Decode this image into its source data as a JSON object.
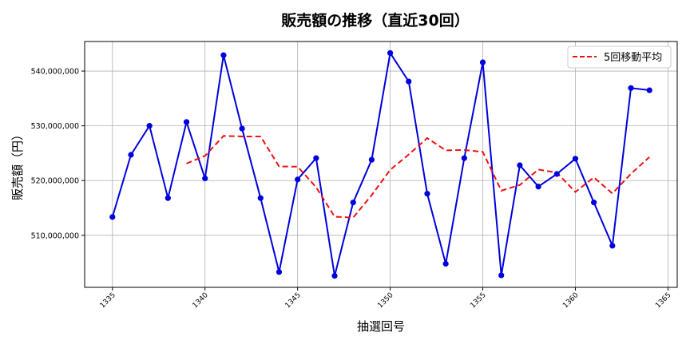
{
  "chart_data": {
    "type": "line",
    "title": "販売額の推移（直近30回）",
    "xlabel": "抽選回号",
    "ylabel": "販売額（円）",
    "xlim": [
      1333.5,
      1365.5
    ],
    "ylim": [
      500500000,
      545400000
    ],
    "xticks": [
      1335,
      1340,
      1345,
      1350,
      1355,
      1360,
      1365
    ],
    "yticks": [
      510000000,
      520000000,
      530000000,
      540000000
    ],
    "ytick_labels": [
      "510,000,000",
      "520,000,000",
      "530,000,000",
      "540,000,000"
    ],
    "grid": true,
    "legend_position": "top-right",
    "x": [
      1335,
      1336,
      1337,
      1338,
      1339,
      1340,
      1341,
      1342,
      1343,
      1344,
      1345,
      1346,
      1347,
      1348,
      1349,
      1350,
      1351,
      1352,
      1353,
      1354,
      1355,
      1356,
      1357,
      1358,
      1359,
      1360,
      1361,
      1362,
      1363,
      1364
    ],
    "series": [
      {
        "name": "販売額",
        "color": "#0000dd",
        "style": "solid-markers",
        "values": [
          513350000,
          524700000,
          530000000,
          516800000,
          530700000,
          520400000,
          542900000,
          529500000,
          516800000,
          503300000,
          520200000,
          524100000,
          502600000,
          516000000,
          523800000,
          543300000,
          538100000,
          517600000,
          504800000,
          524100000,
          541600000,
          502700000,
          522800000,
          518900000,
          521200000,
          524000000,
          516000000,
          508100000,
          536900000,
          536500000
        ]
      },
      {
        "name": "5回移動平均",
        "color": "#ee1111",
        "style": "dashed",
        "window": 5
      }
    ]
  }
}
